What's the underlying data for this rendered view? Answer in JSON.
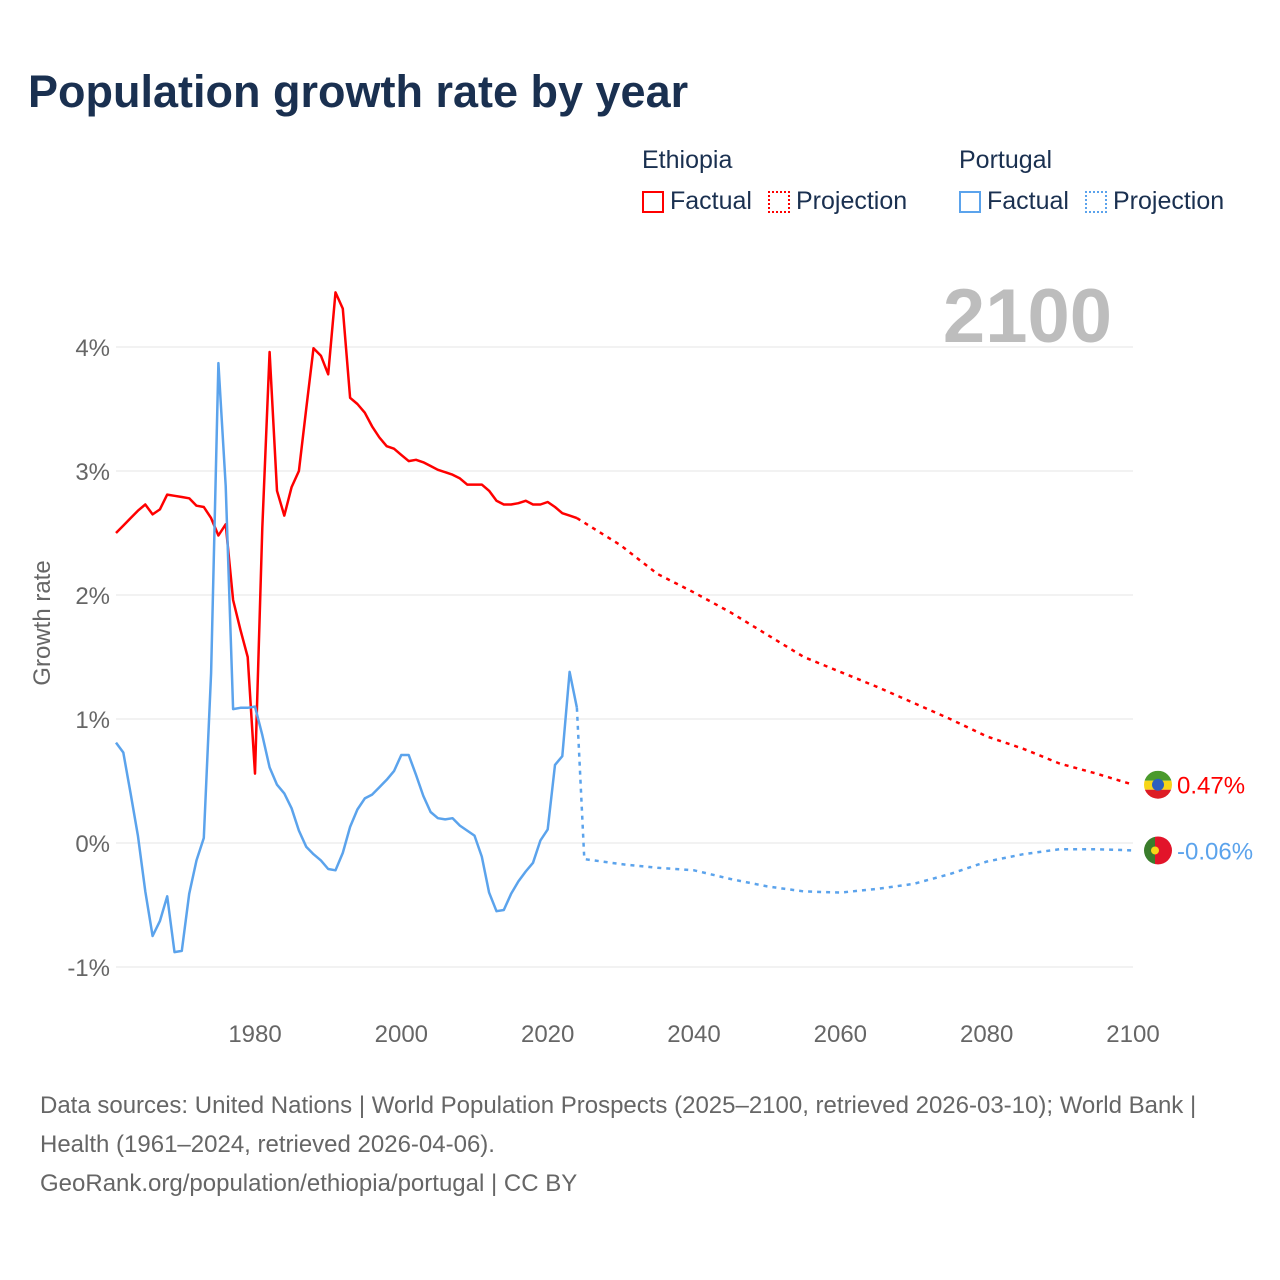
{
  "title": "Population growth rate by year",
  "legend": {
    "groups": [
      {
        "name": "Ethiopia",
        "color": "#ff0000",
        "factual": "Factual",
        "projection": "Projection"
      },
      {
        "name": "Portugal",
        "color": "#5ba3ec",
        "factual": "Factual",
        "projection": "Projection"
      }
    ]
  },
  "year_label": "2100",
  "end_labels": {
    "ethiopia": "0.47%",
    "portugal": "-0.06%"
  },
  "footer": {
    "sources": "Data sources: United Nations | World Population Prospects (2025–2100, retrieved 2026-03-10); World Bank | Health (1961–2024, retrieved 2026-04-06).",
    "credit": "GeoRank.org/population/ethiopia/portugal | CC BY"
  },
  "chart_data": {
    "type": "line",
    "title": "Population growth rate by year",
    "xlabel": "",
    "ylabel": "Growth rate",
    "xlim": [
      1961,
      2100
    ],
    "ylim": [
      -1.3,
      4.6
    ],
    "xticks": [
      1980,
      2000,
      2020,
      2040,
      2060,
      2080,
      2100
    ],
    "xtick_labels": [
      "1980",
      "2000",
      "2020",
      "2040",
      "2060",
      "2080",
      "2100"
    ],
    "yticks": [
      -1,
      0,
      1,
      2,
      3,
      4
    ],
    "ytick_labels": [
      "-1%",
      "0%",
      "1%",
      "2%",
      "3%",
      "4%"
    ],
    "grid": true,
    "legend_position": "top-right",
    "series": [
      {
        "name": "Ethiopia Factual",
        "color": "#ff0000",
        "dash": false,
        "x_start": 1961,
        "x_step": 1,
        "values": [
          2.5,
          2.56,
          2.62,
          2.68,
          2.73,
          2.65,
          2.69,
          2.81,
          2.8,
          2.79,
          2.78,
          2.72,
          2.71,
          2.62,
          2.48,
          2.57,
          1.96,
          1.72,
          1.5,
          0.56,
          2.54,
          3.96,
          2.84,
          2.64,
          2.87,
          3.0,
          3.5,
          3.99,
          3.93,
          3.78,
          4.44,
          4.31,
          3.59,
          3.54,
          3.47,
          3.36,
          3.27,
          3.2,
          3.18,
          3.13,
          3.08,
          3.09,
          3.07,
          3.04,
          3.01,
          2.99,
          2.97,
          2.94,
          2.89,
          2.89,
          2.89,
          2.84,
          2.76,
          2.73,
          2.73,
          2.74,
          2.76,
          2.73,
          2.73,
          2.75,
          2.71,
          2.66,
          2.64,
          2.62
        ]
      },
      {
        "name": "Ethiopia Projection",
        "color": "#ff0000",
        "dash": true,
        "x_start": 2024,
        "x_step": 5,
        "values": [
          2.62,
          2.4,
          2.17,
          2.02,
          1.86,
          1.68,
          1.5,
          1.38,
          1.26,
          1.13,
          1.0,
          0.86,
          0.76,
          0.64,
          0.56,
          0.47
        ],
        "x": [
          2024,
          2030,
          2035,
          2040,
          2045,
          2050,
          2055,
          2060,
          2065,
          2070,
          2075,
          2080,
          2085,
          2090,
          2095,
          2100
        ]
      },
      {
        "name": "Portugal Factual",
        "color": "#5ba3ec",
        "dash": false,
        "x_start": 1961,
        "x_step": 1,
        "values": [
          0.81,
          0.73,
          0.4,
          0.06,
          -0.39,
          -0.75,
          -0.63,
          -0.43,
          -0.88,
          -0.87,
          -0.41,
          -0.14,
          0.04,
          1.37,
          3.87,
          2.88,
          1.08,
          1.09,
          1.09,
          1.1,
          0.87,
          0.61,
          0.47,
          0.4,
          0.28,
          0.1,
          -0.03,
          -0.09,
          -0.14,
          -0.21,
          -0.22,
          -0.08,
          0.13,
          0.27,
          0.36,
          0.39,
          0.45,
          0.51,
          0.58,
          0.71,
          0.71,
          0.55,
          0.38,
          0.25,
          0.2,
          0.19,
          0.2,
          0.14,
          0.1,
          0.06,
          -0.11,
          -0.4,
          -0.55,
          -0.54,
          -0.41,
          -0.31,
          -0.23,
          -0.16,
          0.02,
          0.11,
          0.63,
          0.7,
          1.38,
          1.09
        ]
      },
      {
        "name": "Portugal Projection",
        "color": "#5ba3ec",
        "dash": true,
        "x": [
          2024,
          2025,
          2030,
          2035,
          2040,
          2045,
          2050,
          2055,
          2060,
          2065,
          2070,
          2075,
          2080,
          2085,
          2090,
          2095,
          2100
        ],
        "values": [
          1.09,
          -0.13,
          -0.17,
          -0.2,
          -0.22,
          -0.29,
          -0.35,
          -0.39,
          -0.4,
          -0.37,
          -0.33,
          -0.25,
          -0.15,
          -0.09,
          -0.05,
          -0.05,
          -0.06
        ]
      }
    ]
  }
}
